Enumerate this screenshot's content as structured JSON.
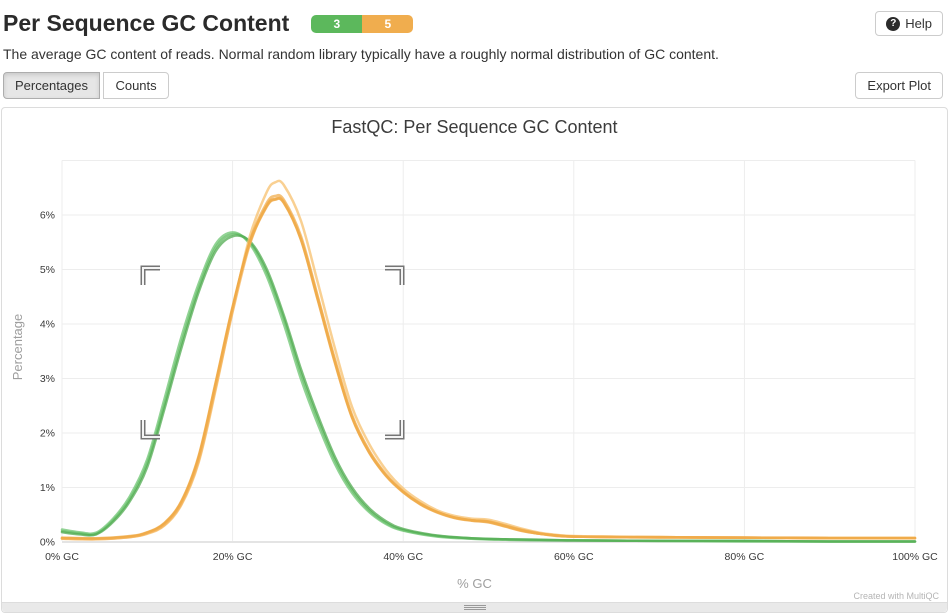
{
  "header": {
    "title": "Per Sequence GC Content",
    "badges": [
      {
        "count": "3",
        "color": "#5cb85c"
      },
      {
        "count": "5",
        "color": "#f0ad4e"
      }
    ],
    "help_icon": "?",
    "help_label": "Help",
    "description": "The average GC content of reads. Normal random library typically have a roughly normal distribution of GC content."
  },
  "toolbar": {
    "buttons": [
      {
        "label": "Percentages",
        "active": true
      },
      {
        "label": "Counts",
        "active": false
      }
    ],
    "export_label": "Export Plot"
  },
  "footer": {
    "credit": "Created with MultiQC"
  },
  "chart_data": {
    "type": "line",
    "title": "FastQC: Per Sequence GC Content",
    "xlabel": "% GC",
    "ylabel": "Percentage",
    "xlim": [
      0,
      100
    ],
    "ylim": [
      0,
      7
    ],
    "grid": true,
    "legend": "none",
    "xticks": [
      {
        "value": 0,
        "label": "0% GC"
      },
      {
        "value": 20,
        "label": "20% GC"
      },
      {
        "value": 40,
        "label": "40% GC"
      },
      {
        "value": 60,
        "label": "60% GC"
      },
      {
        "value": 80,
        "label": "80% GC"
      },
      {
        "value": 100,
        "label": "100% GC"
      }
    ],
    "yticks": [
      {
        "value": 0,
        "label": "0%"
      },
      {
        "value": 1,
        "label": "1%"
      },
      {
        "value": 2,
        "label": "2%"
      },
      {
        "value": 3,
        "label": "3%"
      },
      {
        "value": 4,
        "label": "4%"
      },
      {
        "value": 5,
        "label": "5%"
      },
      {
        "value": 6,
        "label": "6%"
      }
    ],
    "series": [
      {
        "color": "#5cb85c",
        "points": [
          [
            0,
            0.2
          ],
          [
            2,
            0.16
          ],
          [
            4,
            0.15
          ],
          [
            6,
            0.4
          ],
          [
            8,
            0.8
          ],
          [
            10,
            1.45
          ],
          [
            12,
            2.52
          ],
          [
            14,
            3.65
          ],
          [
            16,
            4.65
          ],
          [
            18,
            5.4
          ],
          [
            20,
            5.65
          ],
          [
            22,
            5.5
          ],
          [
            24,
            4.95
          ],
          [
            26,
            4.1
          ],
          [
            28,
            3.1
          ],
          [
            30,
            2.25
          ],
          [
            32,
            1.5
          ],
          [
            34,
            0.95
          ],
          [
            36,
            0.58
          ],
          [
            38,
            0.35
          ],
          [
            40,
            0.22
          ],
          [
            44,
            0.11
          ],
          [
            48,
            0.07
          ],
          [
            52,
            0.05
          ],
          [
            56,
            0.04
          ],
          [
            60,
            0.03
          ],
          [
            70,
            0.02
          ],
          [
            80,
            0.02
          ],
          [
            90,
            0.01
          ],
          [
            100,
            0.01
          ]
        ]
      },
      {
        "color": "#6ec471",
        "points": [
          [
            0,
            0.23
          ],
          [
            2,
            0.18
          ],
          [
            4,
            0.17
          ],
          [
            6,
            0.43
          ],
          [
            8,
            0.85
          ],
          [
            10,
            1.52
          ],
          [
            12,
            2.62
          ],
          [
            14,
            3.76
          ],
          [
            16,
            4.73
          ],
          [
            18,
            5.46
          ],
          [
            20,
            5.68
          ],
          [
            22,
            5.47
          ],
          [
            24,
            4.88
          ],
          [
            26,
            4.0
          ],
          [
            28,
            3.0
          ],
          [
            30,
            2.16
          ],
          [
            32,
            1.43
          ],
          [
            34,
            0.9
          ],
          [
            36,
            0.55
          ],
          [
            38,
            0.33
          ],
          [
            40,
            0.21
          ],
          [
            44,
            0.1
          ],
          [
            48,
            0.06
          ],
          [
            52,
            0.04
          ],
          [
            56,
            0.03
          ],
          [
            60,
            0.03
          ],
          [
            70,
            0.02
          ],
          [
            80,
            0.01
          ],
          [
            90,
            0.01
          ],
          [
            100,
            0.01
          ]
        ]
      },
      {
        "color": "#52ab52",
        "points": [
          [
            0,
            0.18
          ],
          [
            2,
            0.14
          ],
          [
            4,
            0.14
          ],
          [
            6,
            0.37
          ],
          [
            8,
            0.76
          ],
          [
            10,
            1.38
          ],
          [
            12,
            2.44
          ],
          [
            14,
            3.56
          ],
          [
            16,
            4.58
          ],
          [
            18,
            5.33
          ],
          [
            20,
            5.61
          ],
          [
            22,
            5.52
          ],
          [
            24,
            5.01
          ],
          [
            26,
            4.16
          ],
          [
            28,
            3.18
          ],
          [
            30,
            2.32
          ],
          [
            32,
            1.56
          ],
          [
            34,
            1.0
          ],
          [
            36,
            0.62
          ],
          [
            38,
            0.38
          ],
          [
            40,
            0.24
          ],
          [
            44,
            0.12
          ],
          [
            48,
            0.07
          ],
          [
            52,
            0.05
          ],
          [
            56,
            0.04
          ],
          [
            60,
            0.03
          ],
          [
            70,
            0.02
          ],
          [
            80,
            0.02
          ],
          [
            90,
            0.01
          ],
          [
            100,
            0.01
          ]
        ]
      },
      {
        "color": "#f7c06e",
        "points": [
          [
            0,
            0.06
          ],
          [
            4,
            0.05
          ],
          [
            8,
            0.09
          ],
          [
            10,
            0.15
          ],
          [
            12,
            0.3
          ],
          [
            14,
            0.68
          ],
          [
            16,
            1.45
          ],
          [
            18,
            2.78
          ],
          [
            20,
            4.25
          ],
          [
            22,
            5.6
          ],
          [
            24,
            6.42
          ],
          [
            25,
            6.6
          ],
          [
            26,
            6.55
          ],
          [
            28,
            5.9
          ],
          [
            30,
            4.75
          ],
          [
            32,
            3.55
          ],
          [
            34,
            2.48
          ],
          [
            36,
            1.8
          ],
          [
            38,
            1.32
          ],
          [
            40,
            0.98
          ],
          [
            42,
            0.75
          ],
          [
            44,
            0.58
          ],
          [
            46,
            0.48
          ],
          [
            48,
            0.43
          ],
          [
            50,
            0.41
          ],
          [
            52,
            0.33
          ],
          [
            54,
            0.24
          ],
          [
            56,
            0.17
          ],
          [
            58,
            0.13
          ],
          [
            60,
            0.11
          ],
          [
            65,
            0.1
          ],
          [
            70,
            0.09
          ],
          [
            80,
            0.08
          ],
          [
            90,
            0.08
          ],
          [
            100,
            0.08
          ]
        ]
      },
      {
        "color": "#f0ad4e",
        "points": [
          [
            0,
            0.07
          ],
          [
            4,
            0.06
          ],
          [
            8,
            0.1
          ],
          [
            10,
            0.17
          ],
          [
            12,
            0.33
          ],
          [
            14,
            0.72
          ],
          [
            16,
            1.52
          ],
          [
            18,
            2.86
          ],
          [
            20,
            4.28
          ],
          [
            22,
            5.52
          ],
          [
            24,
            6.22
          ],
          [
            25,
            6.35
          ],
          [
            26,
            6.28
          ],
          [
            28,
            5.62
          ],
          [
            30,
            4.5
          ],
          [
            32,
            3.35
          ],
          [
            34,
            2.33
          ],
          [
            36,
            1.68
          ],
          [
            38,
            1.24
          ],
          [
            40,
            0.93
          ],
          [
            42,
            0.71
          ],
          [
            44,
            0.55
          ],
          [
            46,
            0.45
          ],
          [
            48,
            0.4
          ],
          [
            50,
            0.38
          ],
          [
            52,
            0.3
          ],
          [
            54,
            0.22
          ],
          [
            56,
            0.16
          ],
          [
            58,
            0.12
          ],
          [
            60,
            0.1
          ],
          [
            65,
            0.09
          ],
          [
            70,
            0.09
          ],
          [
            80,
            0.08
          ],
          [
            90,
            0.07
          ],
          [
            100,
            0.07
          ]
        ]
      },
      {
        "color": "#eda33c",
        "points": [
          [
            0,
            0.07
          ],
          [
            4,
            0.06
          ],
          [
            8,
            0.1
          ],
          [
            10,
            0.17
          ],
          [
            12,
            0.34
          ],
          [
            14,
            0.74
          ],
          [
            16,
            1.55
          ],
          [
            18,
            2.9
          ],
          [
            20,
            4.3
          ],
          [
            22,
            5.48
          ],
          [
            24,
            6.15
          ],
          [
            25,
            6.28
          ],
          [
            26,
            6.22
          ],
          [
            28,
            5.55
          ],
          [
            30,
            4.43
          ],
          [
            32,
            3.28
          ],
          [
            34,
            2.28
          ],
          [
            36,
            1.64
          ],
          [
            38,
            1.21
          ],
          [
            40,
            0.91
          ],
          [
            42,
            0.69
          ],
          [
            44,
            0.54
          ],
          [
            46,
            0.44
          ],
          [
            48,
            0.39
          ],
          [
            50,
            0.36
          ],
          [
            52,
            0.28
          ],
          [
            54,
            0.2
          ],
          [
            56,
            0.15
          ],
          [
            58,
            0.11
          ],
          [
            60,
            0.1
          ],
          [
            65,
            0.09
          ],
          [
            70,
            0.08
          ],
          [
            80,
            0.08
          ],
          [
            90,
            0.07
          ],
          [
            100,
            0.07
          ]
        ]
      },
      {
        "color": "#f4b45f",
        "points": [
          [
            0,
            0.06
          ],
          [
            4,
            0.05
          ],
          [
            8,
            0.09
          ],
          [
            10,
            0.16
          ],
          [
            12,
            0.31
          ],
          [
            14,
            0.7
          ],
          [
            16,
            1.48
          ],
          [
            18,
            2.82
          ],
          [
            20,
            4.22
          ],
          [
            22,
            5.45
          ],
          [
            24,
            6.18
          ],
          [
            25,
            6.3
          ],
          [
            26,
            6.25
          ],
          [
            28,
            5.58
          ],
          [
            30,
            4.47
          ],
          [
            32,
            3.31
          ],
          [
            34,
            2.3
          ],
          [
            36,
            1.66
          ],
          [
            38,
            1.22
          ],
          [
            40,
            0.92
          ],
          [
            42,
            0.7
          ],
          [
            44,
            0.55
          ],
          [
            46,
            0.45
          ],
          [
            48,
            0.4
          ],
          [
            50,
            0.37
          ],
          [
            52,
            0.29
          ],
          [
            54,
            0.21
          ],
          [
            56,
            0.15
          ],
          [
            58,
            0.12
          ],
          [
            60,
            0.1
          ],
          [
            65,
            0.09
          ],
          [
            70,
            0.09
          ],
          [
            80,
            0.08
          ],
          [
            90,
            0.07
          ],
          [
            100,
            0.07
          ]
        ]
      },
      {
        "color": "#efa945",
        "points": [
          [
            0,
            0.08
          ],
          [
            4,
            0.07
          ],
          [
            8,
            0.11
          ],
          [
            10,
            0.18
          ],
          [
            12,
            0.35
          ],
          [
            14,
            0.75
          ],
          [
            16,
            1.57
          ],
          [
            18,
            2.92
          ],
          [
            20,
            4.32
          ],
          [
            22,
            5.5
          ],
          [
            24,
            6.17
          ],
          [
            25,
            6.29
          ],
          [
            26,
            6.23
          ],
          [
            28,
            5.56
          ],
          [
            30,
            4.45
          ],
          [
            32,
            3.3
          ],
          [
            34,
            2.29
          ],
          [
            36,
            1.65
          ],
          [
            38,
            1.22
          ],
          [
            40,
            0.92
          ],
          [
            42,
            0.7
          ],
          [
            44,
            0.55
          ],
          [
            46,
            0.45
          ],
          [
            48,
            0.4
          ],
          [
            50,
            0.37
          ],
          [
            52,
            0.29
          ],
          [
            54,
            0.21
          ],
          [
            56,
            0.15
          ],
          [
            58,
            0.12
          ],
          [
            60,
            0.1
          ],
          [
            65,
            0.09
          ],
          [
            70,
            0.09
          ],
          [
            80,
            0.08
          ],
          [
            90,
            0.07
          ],
          [
            100,
            0.07
          ]
        ]
      }
    ]
  }
}
